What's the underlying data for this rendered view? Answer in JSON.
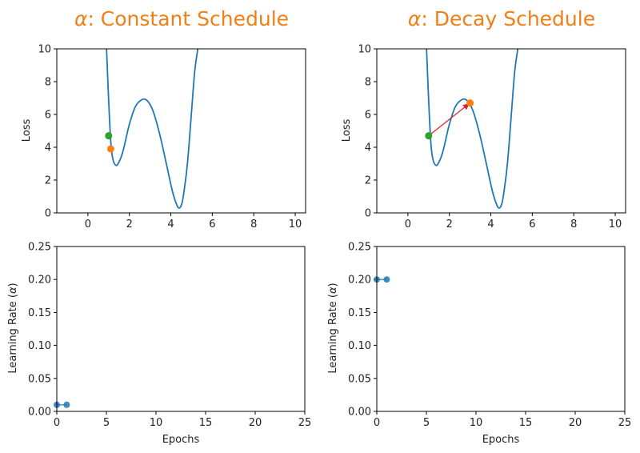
{
  "chart_data": [
    {
      "type": "line",
      "panel": "top-left",
      "title": "α: Constant Schedule",
      "title_prefix": "α",
      "title_suffix": ": Constant Schedule",
      "xlabel": "",
      "ylabel": "Loss",
      "xlim": [
        -1.5,
        10.5
      ],
      "ylim": [
        0,
        10
      ],
      "xticks": [
        "0",
        "2",
        "4",
        "6",
        "8",
        "10"
      ],
      "yticks": [
        "0",
        "2",
        "4",
        "6",
        "8",
        "10"
      ],
      "curve": {
        "color": "#1f77b4",
        "x": [
          0.9,
          1.0,
          1.1,
          1.2,
          1.35,
          1.5,
          1.7,
          2.0,
          2.3,
          2.6,
          2.8,
          3.0,
          3.2,
          3.5,
          3.8,
          4.1,
          4.3,
          4.4,
          4.5,
          4.6,
          4.8,
          5.0,
          5.15,
          5.3
        ],
        "y": [
          10.0,
          6.9,
          4.4,
          3.3,
          2.9,
          3.1,
          3.8,
          5.4,
          6.5,
          6.9,
          6.9,
          6.6,
          6.0,
          4.6,
          2.9,
          1.2,
          0.45,
          0.3,
          0.45,
          1.0,
          3.0,
          6.2,
          8.6,
          10.0
        ]
      },
      "points": [
        {
          "x": 1.0,
          "y": 4.7,
          "color": "#2ca02c"
        },
        {
          "x": 1.1,
          "y": 3.9,
          "color": "#ff7f0e"
        }
      ],
      "arrow": null,
      "grid": false
    },
    {
      "type": "line",
      "panel": "top-right",
      "title": "α: Decay Schedule",
      "title_prefix": "α",
      "title_suffix": ": Decay Schedule",
      "xlabel": "",
      "ylabel": "Loss",
      "xlim": [
        -1.5,
        10.5
      ],
      "ylim": [
        0,
        10
      ],
      "xticks": [
        "0",
        "2",
        "4",
        "6",
        "8",
        "10"
      ],
      "yticks": [
        "0",
        "2",
        "4",
        "6",
        "8",
        "10"
      ],
      "curve": {
        "color": "#1f77b4",
        "x": [
          0.9,
          1.0,
          1.1,
          1.2,
          1.35,
          1.5,
          1.7,
          2.0,
          2.3,
          2.6,
          2.8,
          3.0,
          3.2,
          3.5,
          3.8,
          4.1,
          4.3,
          4.4,
          4.5,
          4.6,
          4.8,
          5.0,
          5.15,
          5.3
        ],
        "y": [
          10.0,
          6.9,
          4.4,
          3.3,
          2.9,
          3.1,
          3.8,
          5.4,
          6.5,
          6.9,
          6.9,
          6.6,
          6.0,
          4.6,
          2.9,
          1.2,
          0.45,
          0.3,
          0.45,
          1.0,
          3.0,
          6.2,
          8.6,
          10.0
        ]
      },
      "points": [
        {
          "x": 1.0,
          "y": 4.7,
          "color": "#2ca02c"
        },
        {
          "x": 3.0,
          "y": 6.7,
          "color": "#ff7f0e"
        }
      ],
      "arrow": {
        "from": [
          1.0,
          4.7
        ],
        "to": [
          3.0,
          6.7
        ],
        "color": "#d62728"
      },
      "grid": false
    },
    {
      "type": "line",
      "panel": "bottom-left",
      "title": "",
      "xlabel": "Epochs",
      "ylabel": "Learning Rate (α)",
      "ylabel_prefix": "Learning Rate (",
      "ylabel_symbol": "α",
      "ylabel_suffix": ")",
      "xlim": [
        0,
        25
      ],
      "ylim": [
        0,
        0.25
      ],
      "xticks": [
        "0",
        "5",
        "10",
        "15",
        "20",
        "25"
      ],
      "yticks": [
        "0.00",
        "0.05",
        "0.10",
        "0.15",
        "0.20",
        "0.25"
      ],
      "series": [
        {
          "x": [
            0,
            1
          ],
          "y": [
            0.01,
            0.01
          ],
          "color": "#1f77b4"
        }
      ],
      "grid": false
    },
    {
      "type": "line",
      "panel": "bottom-right",
      "title": "",
      "xlabel": "Epochs",
      "ylabel": "Learning Rate (α)",
      "ylabel_prefix": "Learning Rate (",
      "ylabel_symbol": "α",
      "ylabel_suffix": ")",
      "xlim": [
        0,
        25
      ],
      "ylim": [
        0,
        0.25
      ],
      "xticks": [
        "0",
        "5",
        "10",
        "15",
        "20",
        "25"
      ],
      "yticks": [
        "0.00",
        "0.05",
        "0.10",
        "0.15",
        "0.20",
        "0.25"
      ],
      "series": [
        {
          "x": [
            0,
            1
          ],
          "y": [
            0.2,
            0.2
          ],
          "color": "#1f77b4"
        }
      ],
      "grid": false
    }
  ]
}
